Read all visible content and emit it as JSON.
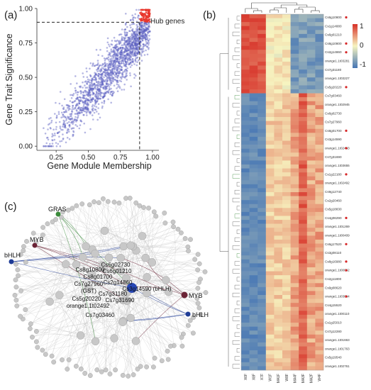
{
  "panels": {
    "a": "(a)",
    "b": "(b)",
    "c": "(c)"
  },
  "chart_data": {
    "type": "scatter",
    "xlabel": "Gene Module Membership",
    "ylabel": "Gene Trait Significance",
    "xlim": [
      0.1,
      1.05
    ],
    "ylim": [
      -0.03,
      1.0
    ],
    "xticks": [
      "0.25",
      "0.50",
      "0.75",
      "1.00"
    ],
    "yticks": [
      "0.00",
      "0.25",
      "0.50",
      "0.75",
      "1.00"
    ],
    "threshold_x": 0.9,
    "threshold_y": 0.9,
    "annotation": "Hub genes",
    "colors": {
      "points": "#5a5fc2",
      "hub": "#e8342a"
    }
  },
  "heatmap": {
    "columns": [
      "X6F",
      "X8F",
      "X7F",
      "W1F",
      "MA1F",
      "W8F",
      "MA4F",
      "MA3F",
      "MA2F",
      "W4F"
    ],
    "legend_ticks": [
      "1",
      "0",
      "-1"
    ],
    "row_labels": [
      "Cs6g10800",
      "Cs1g14880",
      "Cs6g01210",
      "Cs8g10800",
      "Cs2g14860",
      "orange1.1t03281",
      "Cs7g31180",
      "orange1.1t03227",
      "Cs5g20220",
      "Cs7g03460",
      "orange1.1t02945",
      "Cs6g02730",
      "Cs7g27960",
      "Cs8g01700",
      "Cs3g14590",
      "orange1.1t02483",
      "Cs7g31690",
      "orange1.1t03655",
      "Cs1g22180",
      "orange1.1t02492",
      "Cs9g12740",
      "Cs2g20460",
      "Cs5g18830",
      "Cs4g06290",
      "orange1.1t01269",
      "orange1.1t00409",
      "Cs6g17520",
      "Cs3g08110",
      "Cs8g16980",
      "orange1.1t00062",
      "Cs2g11800",
      "Cs9g08620",
      "orange1.1t03054",
      "Cs4g15520",
      "orange1.1t00110",
      "Cs1g25010",
      "Cs7g12280",
      "orange1.1t01663",
      "orange1.1t01763",
      "Cs5g19540",
      "orange1.1t02761"
    ],
    "colors": {
      "high": "#d73027",
      "mid": "#f7f4c0",
      "low": "#4575b4",
      "mark": "#d62728"
    }
  },
  "network": {
    "gene_labels": [
      "Cs6g02730",
      "Cs8g10800",
      "Cs6g01210",
      "Cs8g01700",
      "Cs2g14860",
      "Cs7g27960",
      "(GST)",
      "Cs3g14590 (bHLH)",
      "Cs7g31180",
      "Cs5g20220",
      "Cs7g31690",
      "orange1.1t02492",
      "Cs7g03460"
    ],
    "tf_labels": {
      "gras": "GRAS",
      "myb_left": "MYB",
      "bhlh_left": "bHLH",
      "myb_right": "MYB",
      "bhlh_right": "bHLH"
    },
    "colors": {
      "gras": "#3a8a3a",
      "myb": "#6b2436",
      "bhlh": "#1f3c96",
      "hub": "#2747b5",
      "node": "#c8c8c8",
      "edge": "#b8b8b8"
    }
  }
}
